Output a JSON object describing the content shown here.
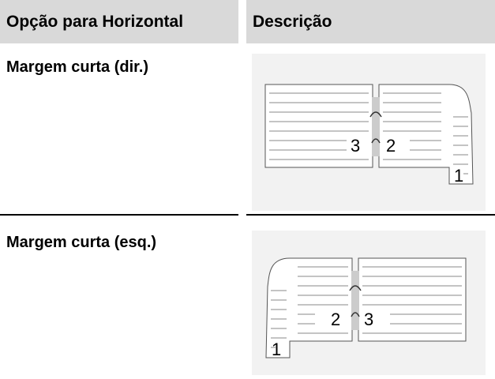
{
  "header": {
    "option": "Opção para Horizontal",
    "description": "Descrição"
  },
  "rows": [
    {
      "option": "Margem curta (dir.)",
      "figure_labels": [
        "3",
        "2",
        "1"
      ]
    },
    {
      "option": "Margem curta (esq.)",
      "figure_labels": [
        "2",
        "3",
        "1"
      ]
    }
  ]
}
